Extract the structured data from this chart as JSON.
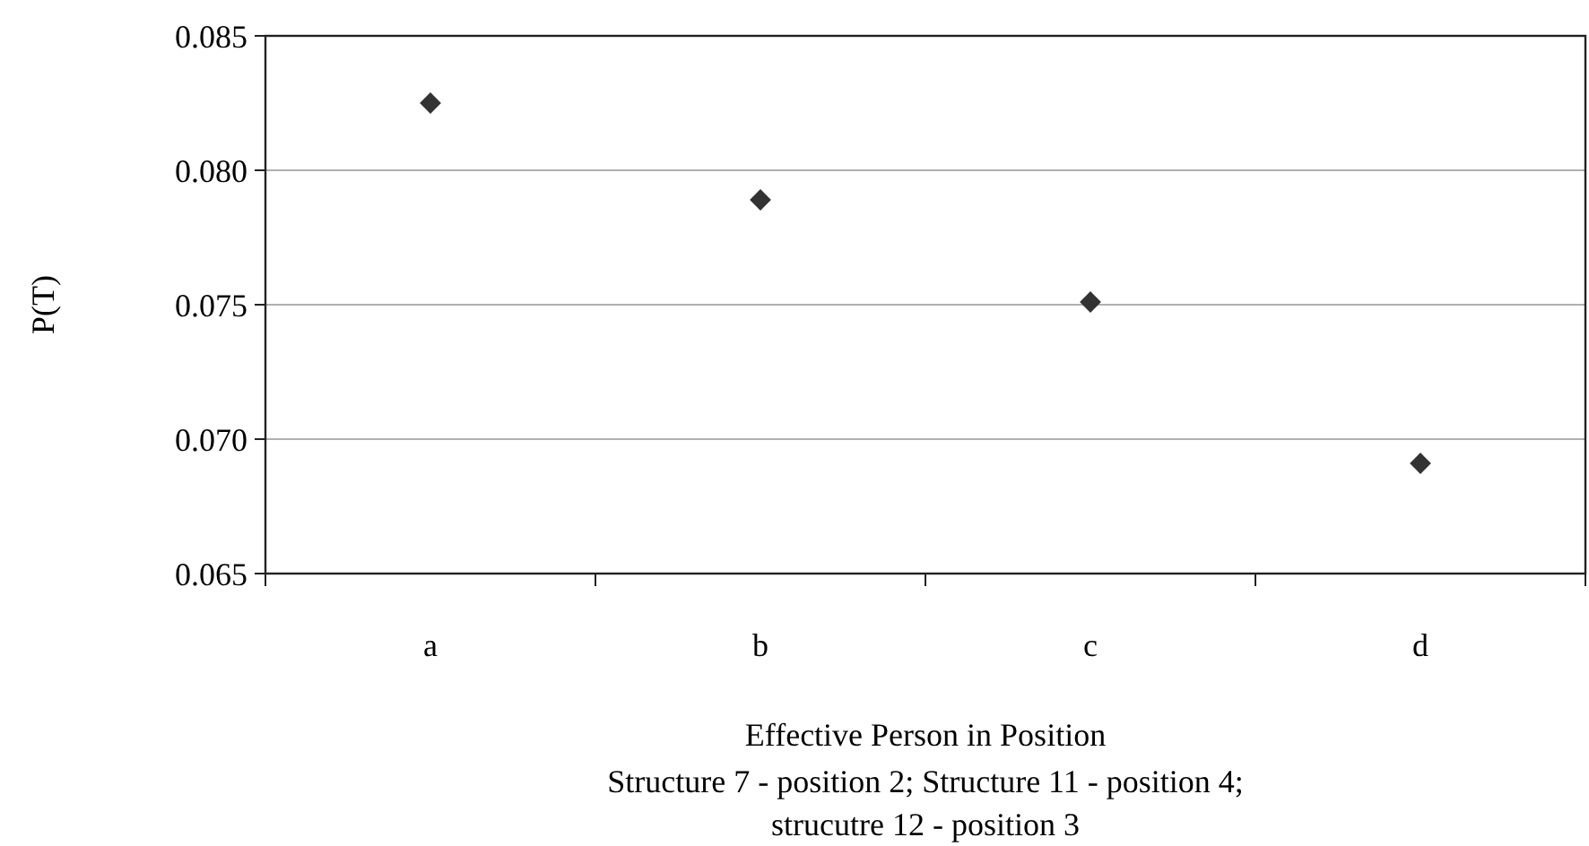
{
  "chart_data": {
    "type": "scatter",
    "xlabel": "Effective Person in Position",
    "ylabel": "P(T)",
    "annotations": [
      "Structure 7 - position 2; Structure 11 - position 4;",
      "strucutre 12 - position 3"
    ],
    "categories": [
      "a",
      "b",
      "c",
      "d"
    ],
    "series": [
      {
        "color": "#333333",
        "values": [
          0.0825,
          0.0789,
          0.0751,
          0.0691
        ]
      }
    ],
    "ylim": [
      0.065,
      0.085
    ],
    "yticks": [
      {
        "value": 0.065,
        "label": "0.065"
      },
      {
        "value": 0.07,
        "label": "0.070"
      },
      {
        "value": 0.075,
        "label": "0.075"
      },
      {
        "value": 0.08,
        "label": "0.080"
      },
      {
        "value": 0.085,
        "label": "0.085"
      }
    ],
    "grid": "y",
    "marker": "diamond"
  }
}
